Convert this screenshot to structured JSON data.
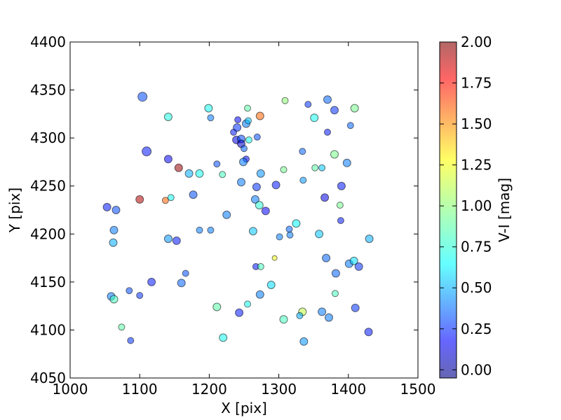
{
  "chart_data": {
    "type": "scatter",
    "xlabel": "X [pix]",
    "ylabel": "Y [pix]",
    "xlim": [
      1000,
      1500
    ],
    "ylim": [
      4050,
      4400
    ],
    "xticks": [
      "1000",
      "1100",
      "1200",
      "1300",
      "1400",
      "1500"
    ],
    "yticks": [
      "4050",
      "4100",
      "4150",
      "4200",
      "4250",
      "4300",
      "4350",
      "4400"
    ],
    "grid": false,
    "colorbar": {
      "label": "V-I [mag]",
      "range": [
        -0.05,
        2.0
      ],
      "ticks": [
        "0.00",
        "0.25",
        "0.50",
        "0.75",
        "1.00",
        "1.25",
        "1.50",
        "1.75",
        "2.00"
      ],
      "colormap": "jet"
    },
    "points": [
      {
        "x": 1104,
        "y": 4343,
        "c": 0.35,
        "s": "L"
      },
      {
        "x": 1141,
        "y": 4322,
        "c": 0.78,
        "s": "M"
      },
      {
        "x": 1110,
        "y": 4286,
        "c": 0.25,
        "s": "L"
      },
      {
        "x": 1141,
        "y": 4278,
        "c": 0.2,
        "s": "M"
      },
      {
        "x": 1156,
        "y": 4269,
        "c": 1.95,
        "s": "M"
      },
      {
        "x": 1171,
        "y": 4263,
        "c": 0.55,
        "s": "M"
      },
      {
        "x": 1186,
        "y": 4263,
        "c": 0.75,
        "s": "M"
      },
      {
        "x": 1199,
        "y": 4331,
        "c": 0.75,
        "s": "M"
      },
      {
        "x": 1202,
        "y": 4321,
        "c": 0.45,
        "s": "S"
      },
      {
        "x": 1211,
        "y": 4273,
        "c": 0.35,
        "s": "S"
      },
      {
        "x": 1219,
        "y": 4262,
        "c": 0.85,
        "s": "S"
      },
      {
        "x": 1100,
        "y": 4236,
        "c": 1.9,
        "s": "M"
      },
      {
        "x": 1137,
        "y": 4235,
        "c": 1.55,
        "s": "S"
      },
      {
        "x": 1145,
        "y": 4238,
        "c": 0.75,
        "s": "S"
      },
      {
        "x": 1177,
        "y": 4241,
        "c": 0.35,
        "s": "M"
      },
      {
        "x": 1053,
        "y": 4228,
        "c": 0.25,
        "s": "M"
      },
      {
        "x": 1066,
        "y": 4225,
        "c": 0.35,
        "s": "M"
      },
      {
        "x": 1063,
        "y": 4204,
        "c": 0.45,
        "s": "M"
      },
      {
        "x": 1062,
        "y": 4191,
        "c": 0.55,
        "s": "M"
      },
      {
        "x": 1141,
        "y": 4195,
        "c": 0.5,
        "s": "M"
      },
      {
        "x": 1153,
        "y": 4193,
        "c": 0.25,
        "s": "M"
      },
      {
        "x": 1186,
        "y": 4204,
        "c": 0.45,
        "s": "S"
      },
      {
        "x": 1202,
        "y": 4204,
        "c": 0.45,
        "s": "S"
      },
      {
        "x": 1225,
        "y": 4220,
        "c": 0.45,
        "s": "M"
      },
      {
        "x": 1166,
        "y": 4159,
        "c": 0.35,
        "s": "S"
      },
      {
        "x": 1160,
        "y": 4149,
        "c": 0.4,
        "s": "M"
      },
      {
        "x": 1117,
        "y": 4150,
        "c": 0.25,
        "s": "M"
      },
      {
        "x": 1085,
        "y": 4141,
        "c": 0.35,
        "s": "S"
      },
      {
        "x": 1100,
        "y": 4136,
        "c": 0.3,
        "s": "S"
      },
      {
        "x": 1059,
        "y": 4135,
        "c": 0.45,
        "s": "M"
      },
      {
        "x": 1063,
        "y": 4132,
        "c": 0.85,
        "s": "M"
      },
      {
        "x": 1074,
        "y": 4103,
        "c": 0.9,
        "s": "S"
      },
      {
        "x": 1087,
        "y": 4089,
        "c": 0.3,
        "s": "S"
      },
      {
        "x": 1211,
        "y": 4124,
        "c": 0.9,
        "s": "M"
      },
      {
        "x": 1220,
        "y": 4092,
        "c": 0.75,
        "s": "M"
      },
      {
        "x": 1235,
        "y": 4306,
        "c": 0.25,
        "s": "S"
      },
      {
        "x": 1240,
        "y": 4311,
        "c": 0.3,
        "s": "M"
      },
      {
        "x": 1241,
        "y": 4319,
        "c": 0.2,
        "s": "S"
      },
      {
        "x": 1239,
        "y": 4298,
        "c": 0.15,
        "s": "M"
      },
      {
        "x": 1246,
        "y": 4299,
        "c": 0.35,
        "s": "M"
      },
      {
        "x": 1246,
        "y": 4294,
        "c": 0.1,
        "s": "M"
      },
      {
        "x": 1250,
        "y": 4289,
        "c": 0.4,
        "s": "S"
      },
      {
        "x": 1253,
        "y": 4315,
        "c": 0.45,
        "s": "M"
      },
      {
        "x": 1255,
        "y": 4331,
        "c": 0.9,
        "s": "S"
      },
      {
        "x": 1256,
        "y": 4318,
        "c": 0.6,
        "s": "S"
      },
      {
        "x": 1257,
        "y": 4298,
        "c": 0.75,
        "s": "S"
      },
      {
        "x": 1253,
        "y": 4278,
        "c": 0.2,
        "s": "S"
      },
      {
        "x": 1249,
        "y": 4275,
        "c": 0.45,
        "s": "M"
      },
      {
        "x": 1269,
        "y": 4301,
        "c": 0.35,
        "s": "S"
      },
      {
        "x": 1273,
        "y": 4323,
        "c": 1.55,
        "s": "M"
      },
      {
        "x": 1274,
        "y": 4263,
        "c": 0.5,
        "s": "M"
      },
      {
        "x": 1246,
        "y": 4254,
        "c": 0.45,
        "s": "M"
      },
      {
        "x": 1268,
        "y": 4249,
        "c": 0.3,
        "s": "M"
      },
      {
        "x": 1266,
        "y": 4236,
        "c": 0.45,
        "s": "M"
      },
      {
        "x": 1272,
        "y": 4230,
        "c": 0.8,
        "s": "M"
      },
      {
        "x": 1281,
        "y": 4224,
        "c": 0.2,
        "s": "M"
      },
      {
        "x": 1263,
        "y": 4203,
        "c": 0.6,
        "s": "M"
      },
      {
        "x": 1296,
        "y": 4251,
        "c": 0.25,
        "s": "M"
      },
      {
        "x": 1307,
        "y": 4267,
        "c": 0.95,
        "s": "S"
      },
      {
        "x": 1309,
        "y": 4339,
        "c": 1.0,
        "s": "S"
      },
      {
        "x": 1342,
        "y": 4335,
        "c": 0.3,
        "s": "S"
      },
      {
        "x": 1351,
        "y": 4321,
        "c": 0.75,
        "s": "M"
      },
      {
        "x": 1334,
        "y": 4286,
        "c": 0.4,
        "s": "S"
      },
      {
        "x": 1335,
        "y": 4256,
        "c": 0.5,
        "s": "S"
      },
      {
        "x": 1352,
        "y": 4269,
        "c": 0.9,
        "s": "S"
      },
      {
        "x": 1362,
        "y": 4269,
        "c": 0.6,
        "s": "S"
      },
      {
        "x": 1370,
        "y": 4340,
        "c": 0.4,
        "s": "M"
      },
      {
        "x": 1380,
        "y": 4329,
        "c": 0.3,
        "s": "M"
      },
      {
        "x": 1370,
        "y": 4306,
        "c": 0.25,
        "s": "S"
      },
      {
        "x": 1380,
        "y": 4283,
        "c": 0.95,
        "s": "M"
      },
      {
        "x": 1398,
        "y": 4274,
        "c": 0.45,
        "s": "M"
      },
      {
        "x": 1403,
        "y": 4313,
        "c": 0.4,
        "s": "S"
      },
      {
        "x": 1409,
        "y": 4331,
        "c": 0.95,
        "s": "M"
      },
      {
        "x": 1366,
        "y": 4238,
        "c": 0.15,
        "s": "M"
      },
      {
        "x": 1390,
        "y": 4250,
        "c": 0.25,
        "s": "M"
      },
      {
        "x": 1388,
        "y": 4230,
        "c": 0.95,
        "s": "S"
      },
      {
        "x": 1389,
        "y": 4214,
        "c": 0.25,
        "s": "S"
      },
      {
        "x": 1325,
        "y": 4211,
        "c": 0.7,
        "s": "M"
      },
      {
        "x": 1315,
        "y": 4205,
        "c": 0.4,
        "s": "S"
      },
      {
        "x": 1301,
        "y": 4197,
        "c": 0.45,
        "s": "S"
      },
      {
        "x": 1316,
        "y": 4199,
        "c": 0.45,
        "s": "S"
      },
      {
        "x": 1358,
        "y": 4200,
        "c": 0.6,
        "s": "M"
      },
      {
        "x": 1430,
        "y": 4195,
        "c": 0.55,
        "s": "M"
      },
      {
        "x": 1294,
        "y": 4175,
        "c": 1.2,
        "s": "XS"
      },
      {
        "x": 1267,
        "y": 4166,
        "c": 0.25,
        "s": "S"
      },
      {
        "x": 1274,
        "y": 4166,
        "c": 0.85,
        "s": "S"
      },
      {
        "x": 1368,
        "y": 4175,
        "c": 0.4,
        "s": "M"
      },
      {
        "x": 1382,
        "y": 4159,
        "c": 0.4,
        "s": "M"
      },
      {
        "x": 1401,
        "y": 4169,
        "c": 0.45,
        "s": "M"
      },
      {
        "x": 1408,
        "y": 4172,
        "c": 0.65,
        "s": "M"
      },
      {
        "x": 1415,
        "y": 4166,
        "c": 0.3,
        "s": "M"
      },
      {
        "x": 1289,
        "y": 4147,
        "c": 0.65,
        "s": "M"
      },
      {
        "x": 1273,
        "y": 4137,
        "c": 0.45,
        "s": "M"
      },
      {
        "x": 1381,
        "y": 4138,
        "c": 0.85,
        "s": "S"
      },
      {
        "x": 1255,
        "y": 4127,
        "c": 0.75,
        "s": "S"
      },
      {
        "x": 1243,
        "y": 4118,
        "c": 0.25,
        "s": "M"
      },
      {
        "x": 1334,
        "y": 4119,
        "c": 1.1,
        "s": "M"
      },
      {
        "x": 1330,
        "y": 4115,
        "c": 0.55,
        "s": "S"
      },
      {
        "x": 1362,
        "y": 4119,
        "c": 0.45,
        "s": "M"
      },
      {
        "x": 1372,
        "y": 4113,
        "c": 0.45,
        "s": "M"
      },
      {
        "x": 1307,
        "y": 4111,
        "c": 0.85,
        "s": "M"
      },
      {
        "x": 1336,
        "y": 4088,
        "c": 0.5,
        "s": "M"
      },
      {
        "x": 1410,
        "y": 4123,
        "c": 0.3,
        "s": "M"
      },
      {
        "x": 1429,
        "y": 4098,
        "c": 0.25,
        "s": "M"
      }
    ]
  }
}
